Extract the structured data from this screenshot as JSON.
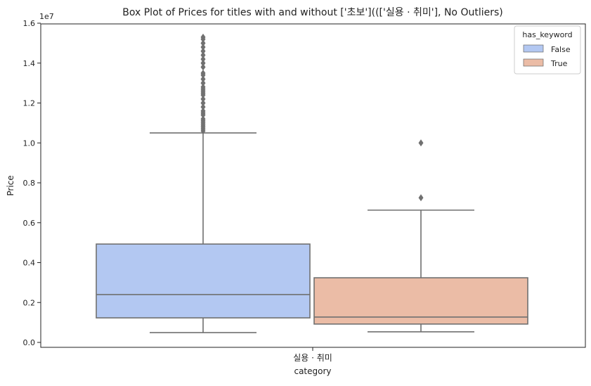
{
  "chart_data": {
    "type": "box",
    "title": "Box Plot of Prices for titles with and without ['초보']((['실용 · 취미'], No Outliers)",
    "xlabel": "category",
    "ylabel": "Price",
    "y_offset_label": "1e7",
    "ylim": [
      -200000,
      16200000
    ],
    "yticks": [
      0,
      2000000,
      4000000,
      6000000,
      8000000,
      10000000,
      12000000,
      14000000,
      16000000
    ],
    "ytick_labels": [
      "0.0",
      "0.2",
      "0.4",
      "0.6",
      "0.8",
      "1.0",
      "1.2",
      "1.4",
      "1.6"
    ],
    "categories": [
      "실용 · 취미"
    ],
    "grid": false,
    "legend": {
      "title": "has_keyword",
      "placement": "top-right"
    },
    "series": [
      {
        "name": "False",
        "color": "#b3c8f2",
        "whisker_low": 490000,
        "q1": 1230000,
        "median": 2400000,
        "q3": 4930000,
        "whisker_high": 10500000,
        "outliers": [
          10600000,
          10700000,
          10800000,
          10900000,
          11000000,
          11100000,
          11200000,
          11400000,
          11500000,
          11600000,
          11800000,
          12000000,
          12200000,
          12400000,
          12500000,
          12600000,
          12700000,
          12800000,
          13000000,
          13200000,
          13400000,
          13500000,
          13800000,
          14000000,
          14200000,
          14400000,
          14600000,
          14800000,
          15000000,
          15200000,
          15300000
        ]
      },
      {
        "name": "True",
        "color": "#ebbca6",
        "whisker_low": 530000,
        "q1": 920000,
        "median": 1270000,
        "q3": 3240000,
        "whisker_high": 6630000,
        "outliers": [
          7250000,
          10000000
        ]
      }
    ]
  }
}
